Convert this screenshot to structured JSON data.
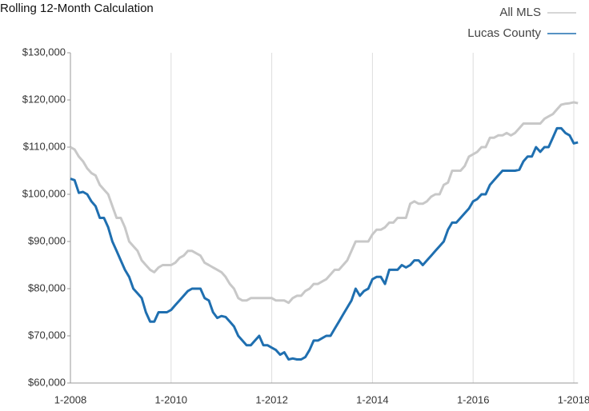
{
  "chart_data": {
    "type": "line",
    "title": "Rolling 12-Month Calculation",
    "categories": [
      "1-2008",
      null,
      null,
      null,
      null,
      null,
      null,
      null,
      null,
      null,
      null,
      null,
      null,
      null,
      null,
      null,
      null,
      null,
      null,
      null,
      null,
      null,
      null,
      null,
      "1-2010",
      null,
      null,
      null,
      null,
      null,
      null,
      null,
      null,
      null,
      null,
      null,
      null,
      null,
      null,
      null,
      null,
      null,
      null,
      null,
      null,
      null,
      null,
      null,
      "1-2012",
      null,
      null,
      null,
      null,
      null,
      null,
      null,
      null,
      null,
      null,
      null,
      null,
      null,
      null,
      null,
      null,
      null,
      null,
      null,
      null,
      null,
      null,
      null,
      "1-2014",
      null,
      null,
      null,
      null,
      null,
      null,
      null,
      null,
      null,
      null,
      null,
      null,
      null,
      null,
      null,
      null,
      null,
      null,
      null,
      null,
      null,
      null,
      null,
      "1-2016",
      null,
      null,
      null,
      null,
      null,
      null,
      null,
      null,
      null,
      null,
      null,
      null,
      null,
      null,
      null,
      null,
      null,
      null,
      null,
      null,
      null,
      null,
      null,
      "1-2018",
      null
    ],
    "series": [
      {
        "name": "All MLS",
        "color": "#c8c8c8",
        "values": [
          110000,
          109500,
          108000,
          107000,
          105500,
          104500,
          104000,
          102000,
          101000,
          100000,
          97500,
          95000,
          95000,
          93000,
          90000,
          89000,
          88000,
          86000,
          85000,
          84000,
          83500,
          84500,
          85000,
          85000,
          85000,
          85500,
          86500,
          87000,
          88000,
          88000,
          87500,
          87000,
          85500,
          85000,
          84500,
          84000,
          83500,
          82500,
          81000,
          80000,
          78000,
          77500,
          77500,
          78000,
          78000,
          78000,
          78000,
          78000,
          78000,
          77500,
          77500,
          77500,
          77000,
          78000,
          78500,
          78500,
          79500,
          80000,
          81000,
          81000,
          81500,
          82000,
          83000,
          84000,
          84000,
          85000,
          86000,
          88000,
          90000,
          90000,
          90000,
          90000,
          91500,
          92500,
          92500,
          93000,
          94000,
          94000,
          95000,
          95000,
          95000,
          98000,
          98500,
          98000,
          98000,
          98500,
          99500,
          100000,
          100000,
          102000,
          102500,
          105000,
          105000,
          105000,
          106000,
          108000,
          108500,
          109000,
          110000,
          110000,
          112000,
          112000,
          112500,
          112500,
          113000,
          112500,
          113000,
          114000,
          115000,
          115000,
          115000,
          115000,
          115000,
          116000,
          116500,
          117000,
          118000,
          119000,
          119200,
          119300,
          119500,
          119300
        ]
      },
      {
        "name": "Lucas County",
        "color": "#1f6fb0",
        "values": [
          103300,
          103000,
          100300,
          100500,
          100000,
          98500,
          97500,
          95000,
          95000,
          93000,
          90000,
          88000,
          86000,
          84000,
          82500,
          80000,
          79000,
          78000,
          75000,
          73000,
          73000,
          75000,
          75000,
          75000,
          75500,
          76500,
          77500,
          78500,
          79500,
          80000,
          80000,
          80000,
          78000,
          77500,
          75000,
          73800,
          74200,
          74000,
          73000,
          72000,
          70000,
          69000,
          68000,
          68000,
          69000,
          70000,
          68000,
          68000,
          67500,
          67000,
          66000,
          66500,
          65000,
          65200,
          65000,
          65000,
          65500,
          67000,
          69000,
          69000,
          69500,
          70000,
          70000,
          71500,
          73000,
          74500,
          76000,
          77500,
          80000,
          78500,
          79500,
          80000,
          82000,
          82500,
          82500,
          81000,
          84000,
          84000,
          84000,
          85000,
          84500,
          85000,
          86000,
          86000,
          85000,
          86000,
          87000,
          88000,
          89000,
          90000,
          92500,
          94000,
          94000,
          95000,
          96000,
          97000,
          98500,
          99000,
          100000,
          100000,
          102000,
          103000,
          104000,
          105000,
          105000,
          105000,
          105000,
          105200,
          107000,
          108000,
          108000,
          110000,
          109000,
          110000,
          110000,
          112000,
          114000,
          114000,
          113000,
          112500,
          110800,
          111000
        ]
      }
    ],
    "ylim": [
      60000,
      130000
    ],
    "yticks": [
      {
        "value": 60000,
        "label": "$60,000"
      },
      {
        "value": 70000,
        "label": "$70,000"
      },
      {
        "value": 80000,
        "label": "$80,000"
      },
      {
        "value": 90000,
        "label": "$90,000"
      },
      {
        "value": 100000,
        "label": "$100,000"
      },
      {
        "value": 110000,
        "label": "$110,000"
      },
      {
        "value": 120000,
        "label": "$120,000"
      },
      {
        "value": 130000,
        "label": "$130,000"
      }
    ],
    "grid": true,
    "legend": "top-right"
  }
}
